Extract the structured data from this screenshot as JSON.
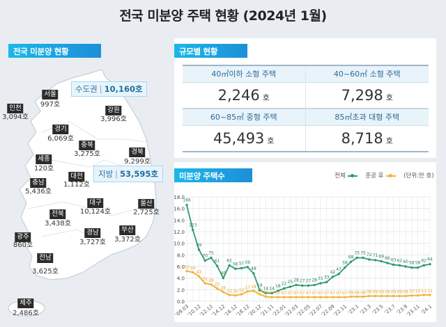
{
  "title": "전국 미분양 주택 현황  (2024년 1월)",
  "map": {
    "heading": "전국 미분양 현황",
    "metro": {
      "label": "수도권",
      "value": "10,160호"
    },
    "local": {
      "label": "지방",
      "value": "53,595호"
    },
    "regions": [
      {
        "name": "서울",
        "value": "997호"
      },
      {
        "name": "인천",
        "value": "3,094호"
      },
      {
        "name": "강원",
        "value": "3,996호"
      },
      {
        "name": "경기",
        "value": "6,069호"
      },
      {
        "name": "충북",
        "value": "3,275호"
      },
      {
        "name": "경북",
        "value": "9,299호"
      },
      {
        "name": "세종",
        "value": "120호"
      },
      {
        "name": "대전",
        "value": "1,112호"
      },
      {
        "name": "충남",
        "value": "5,436호"
      },
      {
        "name": "대구",
        "value": "10,124호"
      },
      {
        "name": "울산",
        "value": "2,725호"
      },
      {
        "name": "전북",
        "value": "3,438호"
      },
      {
        "name": "경남",
        "value": "3,727호"
      },
      {
        "name": "부산",
        "value": "3,372호"
      },
      {
        "name": "광주",
        "value": "860호"
      },
      {
        "name": "전남",
        "value": "3,625호"
      },
      {
        "name": "제주",
        "value": "2,486호"
      }
    ]
  },
  "size": {
    "heading": "규모별 현황",
    "unit": "호",
    "cells": [
      {
        "label": "40㎡이하 소형 주택",
        "value": "2,246"
      },
      {
        "label": "40~60㎡ 소형 주택",
        "value": "7,298"
      },
      {
        "label": "60~85㎡ 중형 주택",
        "value": "45,493"
      },
      {
        "label": "85㎡초과 대형 주택",
        "value": "8,718"
      }
    ]
  },
  "trend": {
    "heading": "미분양 주택수",
    "legend_total": "전체",
    "legend_completed": "준공 후",
    "unit": "(단위:만 호)"
  },
  "chart_data": {
    "type": "line",
    "ylim": [
      0,
      18
    ],
    "yticks": [
      "0.0",
      "2.0",
      "4.0",
      "6.0",
      "8.0",
      "10.0",
      "12.0",
      "14.0",
      "16.0",
      "18.0"
    ],
    "xtick_labels": [
      "'09.03",
      "'10.12",
      "'12.12",
      "'14.12",
      "'16.12",
      "'18.12",
      "'20.12",
      "'21.11",
      "'22.01",
      "'22.03",
      "'22.05",
      "'22.07",
      "'22.09",
      "'22.11",
      "'23.1",
      "'23.3",
      "'23.5",
      "'23.7",
      "'23.9",
      "'23.11",
      "'24.1"
    ],
    "grid": true,
    "legend": "top-right",
    "series": [
      {
        "name": "전체",
        "color": "#2e9a6a",
        "values": [
          16.6,
          12.3,
          8.9,
          7.0,
          7.5,
          6.1,
          4.0,
          6.2,
          5.6,
          5.7,
          5.9,
          4.8,
          1.9,
          1.4,
          1.4,
          1.8,
          2.2,
          2.5,
          2.8,
          2.7,
          2.7,
          2.8,
          3.1,
          3.3,
          4.2,
          4.7,
          5.8,
          6.8,
          7.5,
          7.5,
          7.2,
          7.1,
          6.9,
          6.6,
          6.3,
          6.2,
          6.0,
          5.8,
          5.8,
          6.2,
          6.4
        ]
      },
      {
        "name": "준공 후",
        "color": "#f0b43c",
        "values": [
          5.2,
          5.0,
          4.3,
          3.1,
          2.9,
          2.2,
          1.6,
          1.1,
          1.0,
          1.2,
          1.7,
          1.8,
          1.2,
          0.8,
          0.7,
          0.7,
          0.7,
          0.7,
          0.7,
          0.7,
          0.7,
          0.7,
          0.7,
          0.7,
          0.7,
          0.7,
          0.7,
          0.8,
          0.8,
          0.8,
          0.9,
          0.9,
          0.9,
          0.9,
          0.9,
          0.9,
          0.9,
          1.0,
          1.0,
          1.1,
          1.1
        ]
      }
    ]
  }
}
